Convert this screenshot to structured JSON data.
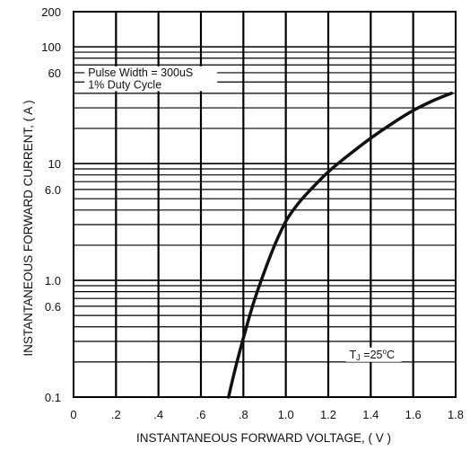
{
  "chart_data": {
    "type": "line",
    "title": "",
    "xlabel": "INSTANTANEOUS FORWARD VOLTAGE, ( V )",
    "ylabel": "INSTANTANEOUS FORWARD CURRENT, ( A )",
    "x_scale": "linear",
    "y_scale": "log",
    "xlim": [
      0,
      1.8
    ],
    "ylim": [
      0.1,
      200
    ],
    "grid": true,
    "x_ticks": [
      {
        "value": 0,
        "label": "0"
      },
      {
        "value": 0.2,
        "label": ".2"
      },
      {
        "value": 0.4,
        "label": ".4"
      },
      {
        "value": 0.6,
        "label": ".6"
      },
      {
        "value": 0.8,
        "label": ".8"
      },
      {
        "value": 1.0,
        "label": "1.0"
      },
      {
        "value": 1.2,
        "label": "1.2"
      },
      {
        "value": 1.4,
        "label": "1.4"
      },
      {
        "value": 1.6,
        "label": "1.6"
      },
      {
        "value": 1.8,
        "label": "1.8"
      }
    ],
    "y_ticks": [
      {
        "value": 0.1,
        "label": "0.1"
      },
      {
        "value": 0.6,
        "label": "0.6"
      },
      {
        "value": 1.0,
        "label": "1.0"
      },
      {
        "value": 6.0,
        "label": "6.0"
      },
      {
        "value": 10,
        "label": "10"
      },
      {
        "value": 60,
        "label": "60"
      },
      {
        "value": 100,
        "label": "100"
      },
      {
        "value": 200,
        "label": "200"
      }
    ],
    "annotations": [
      {
        "text": "Pulse Width = 300uS",
        "x": 0.06,
        "y": 56
      },
      {
        "text": "1% Duty Cycle",
        "x": 0.06,
        "y": 44
      }
    ],
    "tj_label": {
      "prefix": "T",
      "sub": "J",
      "value": " =25",
      "sup": "o",
      "unit": "C",
      "x": 1.3,
      "y": 0.215
    },
    "series": [
      {
        "x": [
          0.73,
          0.76,
          0.8,
          0.85,
          0.9,
          0.95,
          1.0,
          1.05,
          1.1,
          1.2,
          1.3,
          1.4,
          1.5,
          1.6,
          1.7,
          1.78
        ],
        "y": [
          0.1,
          0.17,
          0.32,
          0.66,
          1.2,
          2.05,
          3.2,
          4.35,
          5.55,
          8.5,
          12,
          16.5,
          22,
          28.5,
          35,
          40
        ]
      }
    ]
  }
}
